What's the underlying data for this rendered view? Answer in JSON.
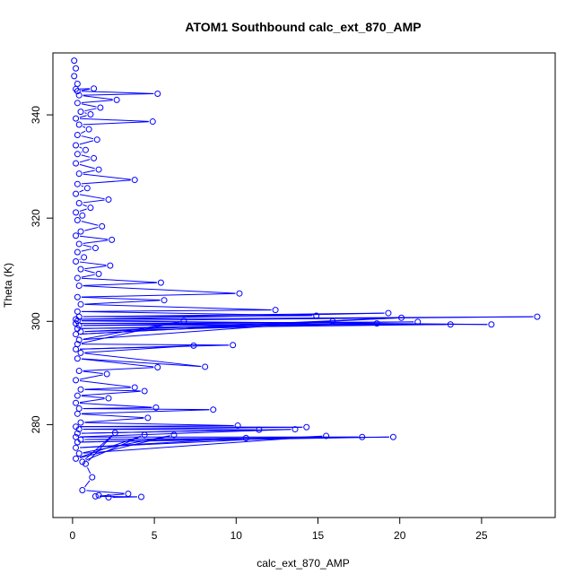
{
  "chart_data": {
    "type": "line",
    "title": "ATOM1 Southbound calc_ext_870_AMP",
    "xlabel": "calc_ext_870_AMP",
    "ylabel": "Theta (K)",
    "xlim": [
      -1.2,
      29.5
    ],
    "ylim": [
      262,
      352
    ],
    "xticks": [
      "0",
      "5",
      "10",
      "15",
      "20",
      "25"
    ],
    "yticks": [
      "280",
      "300",
      "320",
      "340"
    ],
    "series_color": "#0000ff",
    "marker": "open-circle",
    "grid": false,
    "legend": "none",
    "series": [
      {
        "points": [
          [
            0.1,
            350.5
          ],
          [
            0.2,
            349
          ],
          [
            0.1,
            347.5
          ],
          [
            0.3,
            346
          ],
          [
            0.2,
            345
          ],
          [
            1.3,
            345.1
          ],
          [
            0.3,
            344.6
          ],
          [
            5.2,
            344.1
          ],
          [
            0.4,
            343.8
          ],
          [
            2.7,
            342.9
          ],
          [
            0.3,
            342.3
          ],
          [
            1.7,
            341.4
          ],
          [
            0.5,
            340.6
          ],
          [
            1.1,
            340.1
          ],
          [
            0.2,
            339.3
          ],
          [
            4.9,
            338.7
          ],
          [
            0.4,
            338.1
          ],
          [
            1.0,
            337.2
          ],
          [
            0.3,
            336.1
          ],
          [
            1.5,
            335.2
          ],
          [
            0.2,
            334.1
          ],
          [
            0.8,
            333.2
          ],
          [
            0.3,
            332.4
          ],
          [
            1.3,
            331.6
          ],
          [
            0.2,
            330.6
          ],
          [
            1.6,
            329.4
          ],
          [
            0.4,
            328.6
          ],
          [
            3.8,
            327.4
          ],
          [
            0.3,
            326.6
          ],
          [
            0.9,
            325.8
          ],
          [
            0.2,
            324.7
          ],
          [
            2.2,
            323.6
          ],
          [
            0.4,
            322.9
          ],
          [
            1.1,
            322.0
          ],
          [
            0.2,
            321.1
          ],
          [
            0.6,
            320.5
          ],
          [
            0.3,
            319.6
          ],
          [
            1.8,
            318.4
          ],
          [
            0.5,
            317.4
          ],
          [
            0.2,
            316.6
          ],
          [
            2.4,
            315.8
          ],
          [
            0.4,
            315.0
          ],
          [
            1.4,
            314.2
          ],
          [
            0.3,
            313.4
          ],
          [
            0.7,
            312.4
          ],
          [
            0.2,
            311.6
          ],
          [
            2.3,
            310.8
          ],
          [
            0.5,
            310.1
          ],
          [
            1.6,
            309.2
          ],
          [
            0.3,
            308.4
          ],
          [
            5.4,
            307.5
          ],
          [
            0.4,
            306.9
          ],
          [
            10.2,
            305.4
          ],
          [
            0.3,
            304.7
          ],
          [
            5.6,
            304.1
          ],
          [
            0.5,
            303.3
          ],
          [
            12.4,
            302.2
          ],
          [
            0.3,
            301.9
          ],
          [
            14.9,
            301.1
          ],
          [
            0.4,
            300.9
          ],
          [
            19.3,
            301.6
          ],
          [
            0.2,
            300.4
          ],
          [
            28.4,
            300.9
          ],
          [
            0.3,
            300.1
          ],
          [
            25.6,
            299.4
          ],
          [
            0.2,
            299.6
          ],
          [
            21.1,
            299.9
          ],
          [
            0.4,
            299.2
          ],
          [
            23.1,
            299.4
          ],
          [
            0.3,
            298.6
          ],
          [
            18.6,
            299.6
          ],
          [
            0.5,
            298.0
          ],
          [
            20.1,
            300.7
          ],
          [
            0.2,
            297.5
          ],
          [
            15.9,
            300.0
          ],
          [
            0.4,
            296.4
          ],
          [
            6.8,
            300.1
          ],
          [
            0.3,
            295.6
          ],
          [
            9.8,
            295.4
          ],
          [
            0.2,
            294.6
          ],
          [
            7.4,
            295.3
          ],
          [
            0.5,
            293.9
          ],
          [
            8.1,
            291.2
          ],
          [
            0.3,
            292.8
          ],
          [
            5.2,
            291.1
          ],
          [
            0.4,
            290.4
          ],
          [
            2.1,
            289.8
          ],
          [
            0.2,
            288.6
          ],
          [
            3.8,
            287.2
          ],
          [
            0.5,
            286.8
          ],
          [
            4.4,
            286.5
          ],
          [
            0.3,
            285.6
          ],
          [
            2.2,
            285.1
          ],
          [
            0.2,
            284.2
          ],
          [
            5.1,
            283.3
          ],
          [
            0.4,
            283.1
          ],
          [
            8.6,
            282.9
          ],
          [
            0.3,
            282.1
          ],
          [
            4.6,
            281.3
          ],
          [
            0.5,
            280.4
          ],
          [
            10.1,
            279.8
          ],
          [
            0.2,
            279.6
          ],
          [
            14.3,
            279.5
          ],
          [
            0.4,
            279.1
          ],
          [
            11.4,
            279.0
          ],
          [
            0.3,
            278.3
          ],
          [
            13.6,
            279.1
          ],
          [
            0.2,
            277.6
          ],
          [
            17.7,
            277.6
          ],
          [
            0.5,
            277.1
          ],
          [
            19.6,
            277.6
          ],
          [
            0.3,
            276.6
          ],
          [
            10.6,
            277.4
          ],
          [
            0.2,
            275.5
          ],
          [
            15.5,
            277.8
          ],
          [
            0.4,
            274.4
          ],
          [
            6.2,
            278.0
          ],
          [
            0.2,
            273.4
          ],
          [
            4.4,
            278.0
          ],
          [
            0.6,
            272.8
          ],
          [
            2.6,
            278.4
          ],
          [
            0.8,
            272.4
          ],
          [
            1.2,
            269.8
          ],
          [
            0.6,
            267.3
          ],
          [
            3.4,
            266.6
          ],
          [
            1.4,
            266.1
          ],
          [
            4.2,
            266.0
          ],
          [
            2.2,
            265.9
          ],
          [
            1.6,
            266.3
          ]
        ]
      }
    ]
  }
}
